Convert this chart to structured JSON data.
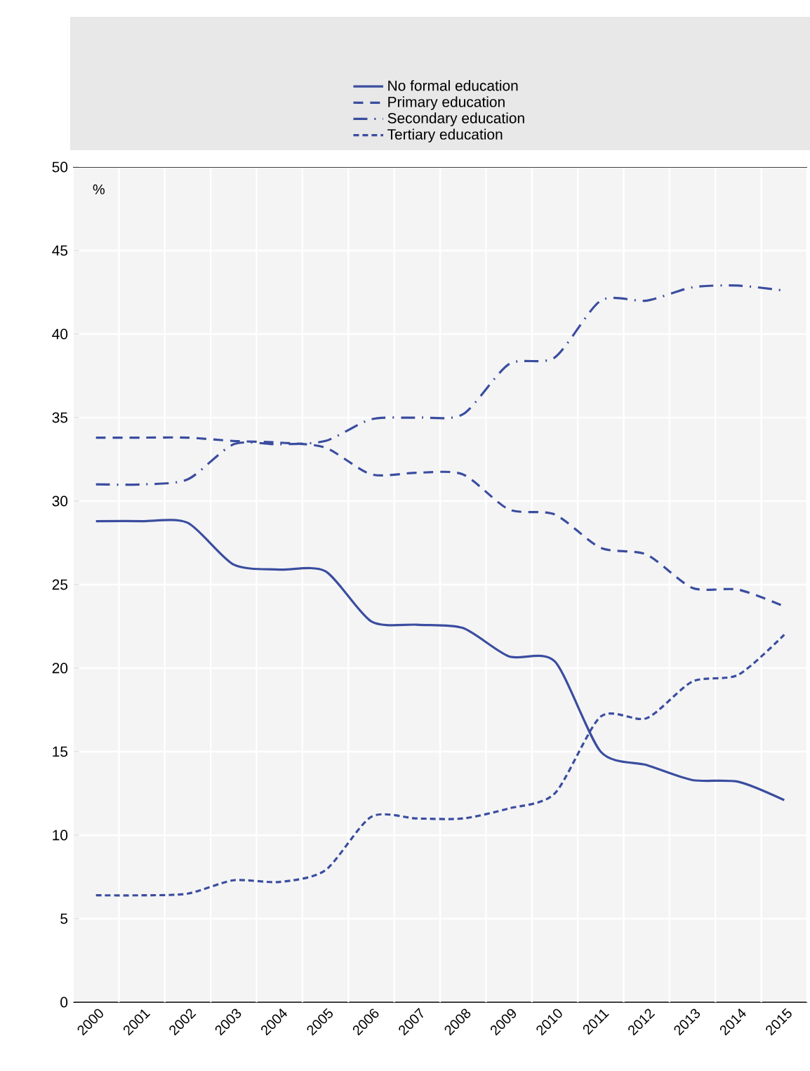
{
  "chart_data": {
    "type": "line",
    "ylabel": "%",
    "categories": [
      "2000",
      "2001",
      "2002",
      "2003",
      "2004",
      "2005",
      "2006",
      "2007",
      "2008",
      "2009",
      "2010",
      "2011",
      "2012",
      "2013",
      "2014",
      "2015"
    ],
    "series": [
      {
        "name": "No formal education",
        "color": "#3a4d9f",
        "line_style": "solid",
        "values": [
          28.8,
          28.8,
          28.7,
          26.2,
          25.9,
          25.8,
          22.8,
          22.6,
          22.4,
          20.7,
          20.4,
          15.0,
          14.2,
          13.3,
          13.2,
          12.1
        ]
      },
      {
        "name": "Primary education",
        "color": "#3a4d9f",
        "line_style": "dashed",
        "values": [
          33.8,
          33.8,
          33.8,
          33.6,
          33.5,
          33.2,
          31.6,
          31.7,
          31.6,
          29.5,
          29.2,
          27.2,
          26.8,
          24.8,
          24.7,
          23.7
        ]
      },
      {
        "name": "Secondary education",
        "color": "#3a4d9f",
        "line_style": "dashdot",
        "values": [
          31.0,
          31.0,
          31.3,
          33.4,
          33.4,
          33.6,
          34.9,
          35.0,
          35.2,
          38.2,
          38.6,
          42.0,
          42.0,
          42.8,
          42.9,
          42.6
        ]
      },
      {
        "name": "Tertiary education",
        "color": "#3a4d9f",
        "line_style": "densely dashed",
        "values": [
          6.4,
          6.4,
          6.5,
          7.3,
          7.2,
          7.9,
          11.1,
          11.0,
          11.0,
          11.6,
          12.5,
          17.1,
          17.0,
          19.2,
          19.6,
          22.0
        ]
      }
    ],
    "ylim": [
      0,
      50
    ],
    "yticks": [
      0,
      5,
      10,
      15,
      20,
      25,
      30,
      35,
      40,
      45,
      50
    ],
    "grid": true,
    "legend": "top"
  }
}
